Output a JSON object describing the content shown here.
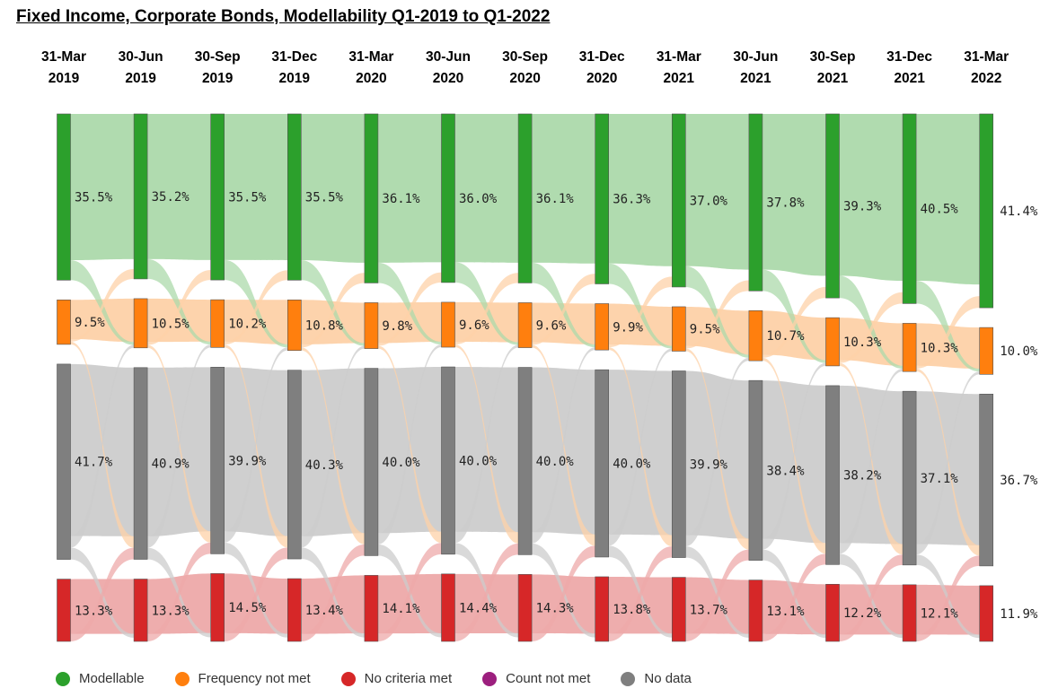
{
  "title": "Fixed Income, Corporate Bonds, Modellability Q1-2019 to Q1-2022",
  "legend": [
    {
      "label": "Modellable",
      "color": "#2ca02c"
    },
    {
      "label": "Frequency not met",
      "color": "#ff7f0e"
    },
    {
      "label": "No criteria met",
      "color": "#d62728"
    },
    {
      "label": "Count not met",
      "color": "#9c1f7e"
    },
    {
      "label": "No data",
      "color": "#7f7f7f"
    }
  ],
  "chart_data": {
    "type": "sankey",
    "periods": [
      {
        "line1": "31-Mar",
        "line2": "2019"
      },
      {
        "line1": "30-Jun",
        "line2": "2019"
      },
      {
        "line1": "30-Sep",
        "line2": "2019"
      },
      {
        "line1": "31-Dec",
        "line2": "2019"
      },
      {
        "line1": "31-Mar",
        "line2": "2020"
      },
      {
        "line1": "30-Jun",
        "line2": "2020"
      },
      {
        "line1": "30-Sep",
        "line2": "2020"
      },
      {
        "line1": "31-Dec",
        "line2": "2020"
      },
      {
        "line1": "31-Mar",
        "line2": "2021"
      },
      {
        "line1": "30-Jun",
        "line2": "2021"
      },
      {
        "line1": "30-Sep",
        "line2": "2021"
      },
      {
        "line1": "31-Dec",
        "line2": "2021"
      },
      {
        "line1": "31-Mar",
        "line2": "2022"
      }
    ],
    "series": [
      {
        "name": "Modellable",
        "color": "#2ca02c",
        "flow_color": "#acd9ab",
        "values": [
          35.5,
          35.2,
          35.5,
          35.5,
          36.1,
          36.0,
          36.1,
          36.3,
          37.0,
          37.8,
          39.3,
          40.5,
          41.4
        ]
      },
      {
        "name": "Frequency not met",
        "color": "#ff7f0e",
        "flow_color": "#fdd1a8",
        "values": [
          9.5,
          10.5,
          10.2,
          10.8,
          9.8,
          9.6,
          9.6,
          9.9,
          9.5,
          10.7,
          10.3,
          10.3,
          10.0
        ]
      },
      {
        "name": "No data",
        "color": "#7f7f7f",
        "flow_color": "#cccccc",
        "values": [
          41.7,
          40.9,
          39.9,
          40.3,
          40.0,
          40.0,
          40.0,
          40.0,
          39.9,
          38.4,
          38.2,
          37.1,
          36.7
        ]
      },
      {
        "name": "No criteria met",
        "color": "#d62728",
        "flow_color": "#eda9a9",
        "values": [
          13.3,
          13.3,
          14.5,
          13.4,
          14.1,
          14.4,
          14.3,
          13.8,
          13.7,
          13.1,
          12.2,
          12.1,
          11.9
        ]
      }
    ],
    "value_labels": [
      [
        "35.5%",
        "35.2%",
        "35.5%",
        "35.5%",
        "36.1%",
        "36.0%",
        "36.1%",
        "36.3%",
        "37.0%",
        "37.8%",
        "39.3%",
        "40.5%",
        "41.4%"
      ],
      [
        "9.5%",
        "10.5%",
        "10.2%",
        "10.8%",
        "9.8%",
        "9.6%",
        "9.6%",
        "9.9%",
        "9.5%",
        "10.7%",
        "10.3%",
        "10.3%",
        "10.0%"
      ],
      [
        "41.7%",
        "40.9%",
        "39.9%",
        "40.3%",
        "40.0%",
        "40.0%",
        "40.0%",
        "40.0%",
        "39.9%",
        "38.4%",
        "38.2%",
        "37.1%",
        "36.7%"
      ],
      [
        "13.3%",
        "13.3%",
        "14.5%",
        "13.4%",
        "14.1%",
        "14.4%",
        "14.3%",
        "13.8%",
        "13.7%",
        "13.1%",
        "12.2%",
        "12.1%",
        "11.9%"
      ]
    ],
    "flow_connector_color": "#e0e0e0",
    "unit": "%"
  }
}
